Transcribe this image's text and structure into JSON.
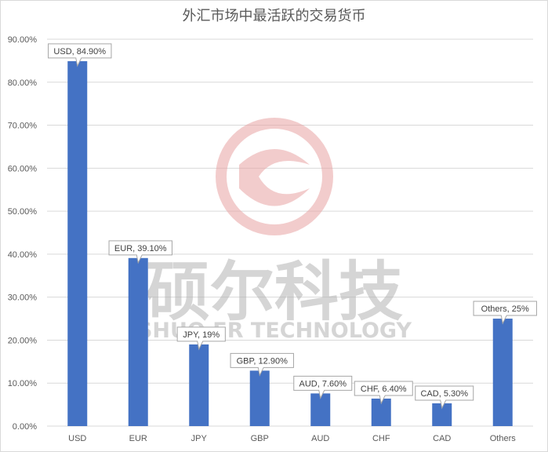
{
  "chart_data": {
    "type": "bar",
    "title": "外汇市场中最活跃的交易货币",
    "categories": [
      "USD",
      "EUR",
      "JPY",
      "GBP",
      "AUD",
      "CHF",
      "CAD",
      "Others"
    ],
    "values": [
      84.9,
      39.1,
      19,
      12.9,
      7.6,
      6.4,
      5.3,
      25
    ],
    "data_labels": [
      "USD, 84.90%",
      "EUR, 39.10%",
      "JPY, 19%",
      "GBP, 12.90%",
      "AUD, 7.60%",
      "CHF, 6.40%",
      "CAD, 5.30%",
      "Others, 25%"
    ],
    "y_ticks": [
      "0.00%",
      "10.00%",
      "20.00%",
      "30.00%",
      "40.00%",
      "50.00%",
      "60.00%",
      "70.00%",
      "80.00%",
      "90.00%"
    ],
    "ylim": [
      0,
      90
    ],
    "grid": true,
    "bar_color": "#4472c4"
  },
  "watermark": {
    "text_cn": "硕尔科技",
    "text_en": "SHUO ER TECHNOLOGY"
  }
}
